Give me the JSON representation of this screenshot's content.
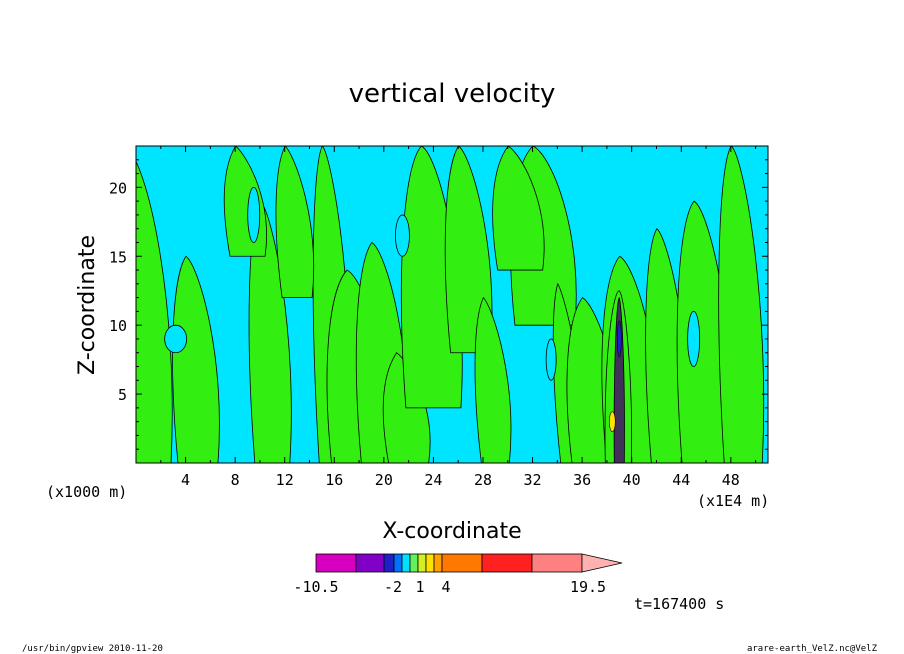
{
  "chart_data": {
    "type": "heatmap",
    "title": "vertical velocity",
    "xlabel": "X-coordinate",
    "ylabel": "Z-coordinate",
    "x_unit_left": "(x1000 m)",
    "x_unit_right": "(x1E4 m)",
    "xlim": [
      0,
      51
    ],
    "ylim": [
      0,
      23
    ],
    "xticks": [
      "4",
      "8",
      "12",
      "16",
      "20",
      "24",
      "28",
      "32",
      "36",
      "40",
      "44",
      "48"
    ],
    "yticks": [
      "5",
      "10",
      "15",
      "20"
    ],
    "colorbar": {
      "labels": [
        "-10.5",
        "-2",
        "1",
        "4",
        "19.5"
      ],
      "colors": [
        "#d800c0",
        "#8000c8",
        "#2020c8",
        "#0070ff",
        "#00e0ff",
        "#60f060",
        "#d0f020",
        "#ffe000",
        "#ffa000",
        "#ff7800",
        "#ff2020",
        "#ff8080",
        "#ffb0b0"
      ]
    },
    "fields": {
      "background": "#00e5ff",
      "positive": "#33ee11"
    },
    "time_label": "t=167400 s"
  },
  "footer": {
    "left": "/usr/bin/gpview   2010-11-20",
    "right": "arare-earth_VelZ.nc@VelZ"
  }
}
